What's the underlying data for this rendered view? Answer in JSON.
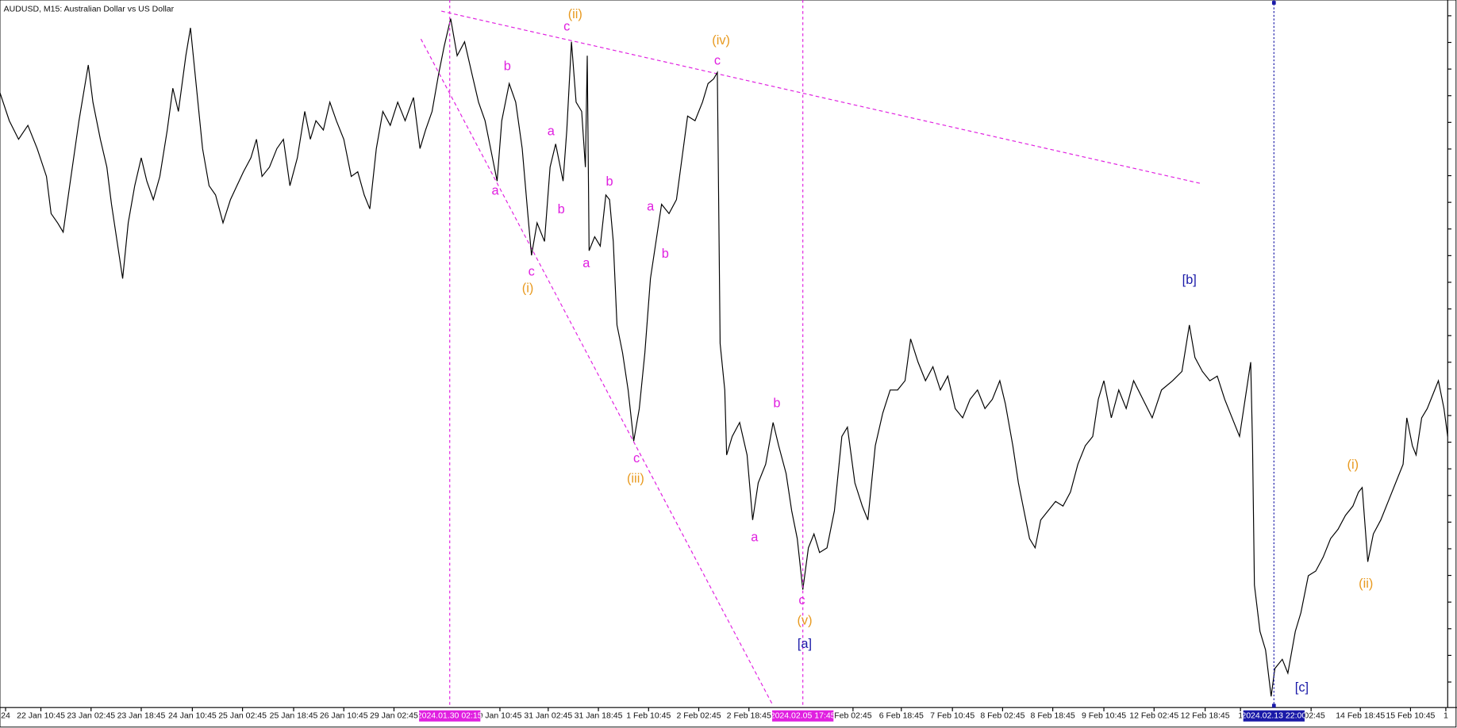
{
  "header": {
    "title": "AUDUSD, M15:  Australian Dollar vs US Dollar"
  },
  "time_axis": {
    "labels": [
      "24",
      "22 Jan 10:45",
      "23 Jan 02:45",
      "23 Jan 18:45",
      "24 Jan 10:45",
      "25 Jan 02:45",
      "25 Jan 18:45",
      "26 Jan 10:45",
      "29 Jan 02:45",
      "0 Jan 10:45",
      "31 Jan 02:45",
      "31 Jan 18:45",
      "1 Feb 10:45",
      "2 Feb 02:45",
      "2 Feb 18:45",
      "Feb 02:45",
      "6 Feb 18:45",
      "7 Feb 10:45",
      "8 Feb 02:45",
      "8 Feb 18:45",
      "9 Feb 10:45",
      "12 Feb 02:45",
      "12 Feb 18:45",
      "1",
      "b 02:45",
      "14 Feb 18:45",
      "15 Feb 10:45",
      "1"
    ]
  },
  "markers": [
    {
      "label": "2024.01.30 02:15",
      "color": "#e020e0"
    },
    {
      "label": "2024.02.05 17:45",
      "color": "#e020e0"
    },
    {
      "label": "2024.02.13 22:00",
      "color": "#1a1aa8"
    }
  ],
  "wave_labels": [
    {
      "text": "(ii)",
      "color": "#e89a20"
    },
    {
      "text": "c",
      "color": "#e020e0"
    },
    {
      "text": "(iv)",
      "color": "#e89a20"
    },
    {
      "text": "c",
      "color": "#e020e0"
    },
    {
      "text": "b",
      "color": "#e020e0"
    },
    {
      "text": "a",
      "color": "#e020e0"
    },
    {
      "text": "a",
      "color": "#e020e0"
    },
    {
      "text": "b",
      "color": "#e020e0"
    },
    {
      "text": "b",
      "color": "#e020e0"
    },
    {
      "text": "a",
      "color": "#e020e0"
    },
    {
      "text": "b",
      "color": "#e020e0"
    },
    {
      "text": "a",
      "color": "#e020e0"
    },
    {
      "text": "c",
      "color": "#e020e0"
    },
    {
      "text": "(i)",
      "color": "#e89a20"
    },
    {
      "text": "c",
      "color": "#e020e0"
    },
    {
      "text": "(iii)",
      "color": "#e89a20"
    },
    {
      "text": "b",
      "color": "#e020e0"
    },
    {
      "text": "a",
      "color": "#e020e0"
    },
    {
      "text": "c",
      "color": "#e020e0"
    },
    {
      "text": "(v)",
      "color": "#e89a20"
    },
    {
      "text": "[a]",
      "color": "#1a1aa8"
    },
    {
      "text": "[b]",
      "color": "#1a1aa8"
    },
    {
      "text": "[c]",
      "color": "#1a1aa8"
    },
    {
      "text": "(i)",
      "color": "#e89a20"
    },
    {
      "text": "(ii)",
      "color": "#e89a20"
    }
  ]
}
